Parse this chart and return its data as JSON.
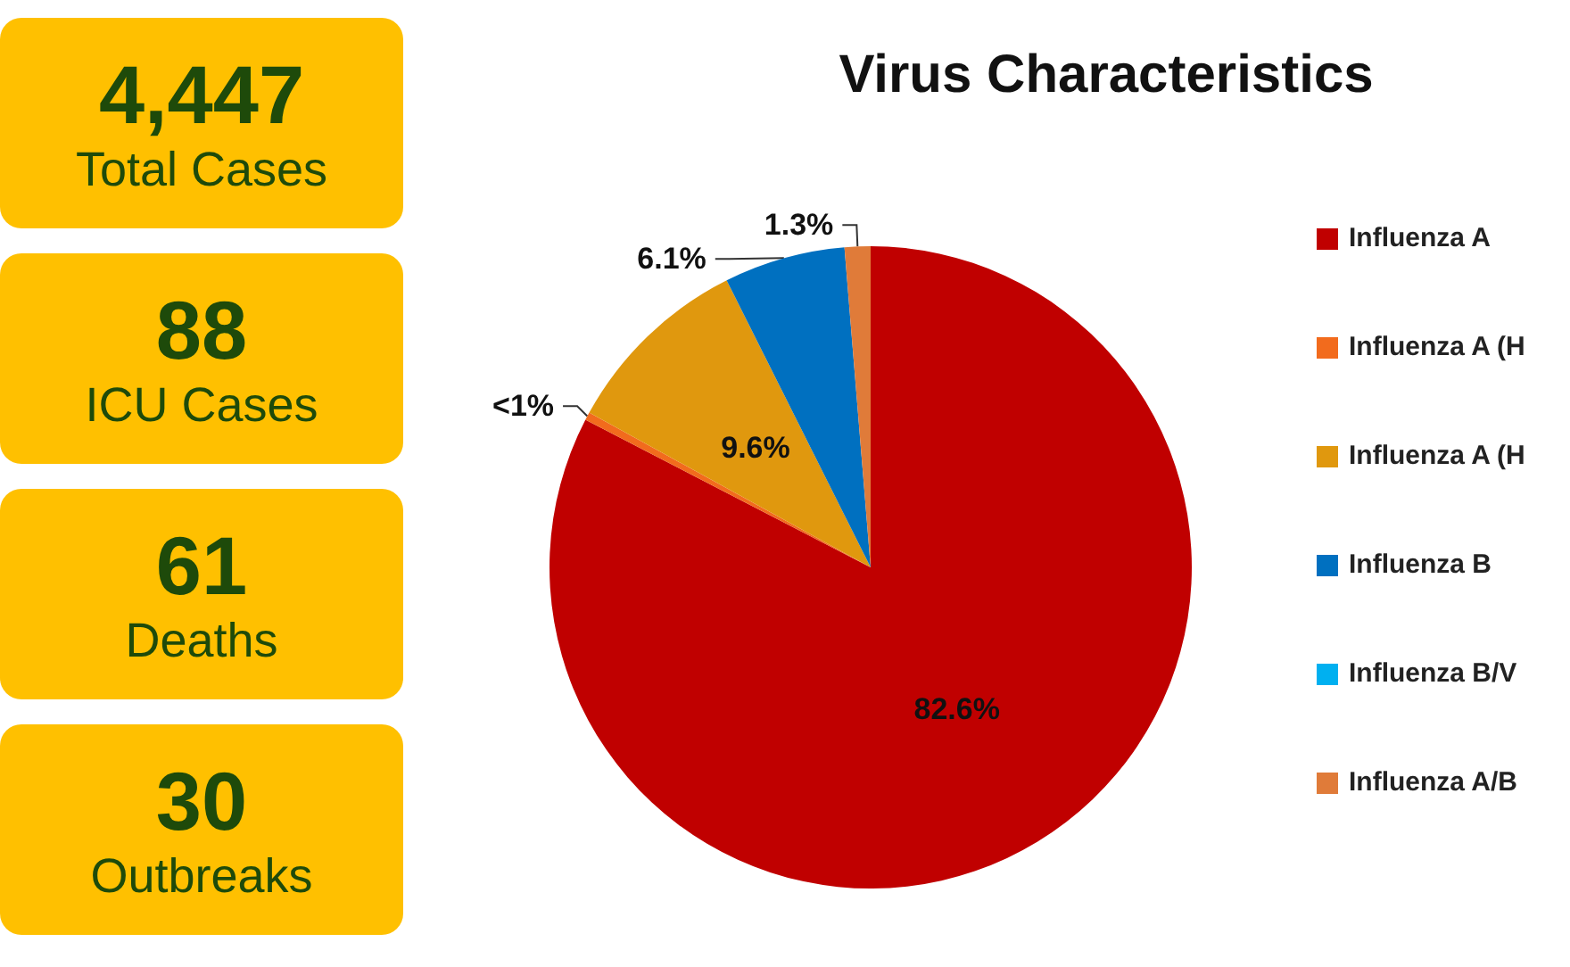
{
  "chart_data": [
    {
      "type": "other",
      "categories": [
        "Total Cases",
        "ICU Cases",
        "Deaths",
        "Outbreaks"
      ],
      "value_labels": [
        "4,447",
        "88",
        "61",
        "30"
      ],
      "color": "#ffc000"
    },
    {
      "type": "pie",
      "title": "Virus Characteristics",
      "categories": [
        "Influenza A",
        "Influenza A (H",
        "Influenza A (H",
        "Influenza B",
        "Influenza B/V",
        "Influenza A/B"
      ],
      "values": [
        82.6,
        0.4,
        9.6,
        6.1,
        0,
        1.3
      ],
      "value_labels": [
        "82.6%",
        "<1%",
        "9.6%",
        "6.1%",
        null,
        "1.3%"
      ],
      "colors": [
        "#c00000",
        "#f26b1d",
        "#e0980e",
        "#0070c0",
        "#00b0f0",
        "#e07b39"
      ],
      "legend": "right"
    }
  ]
}
